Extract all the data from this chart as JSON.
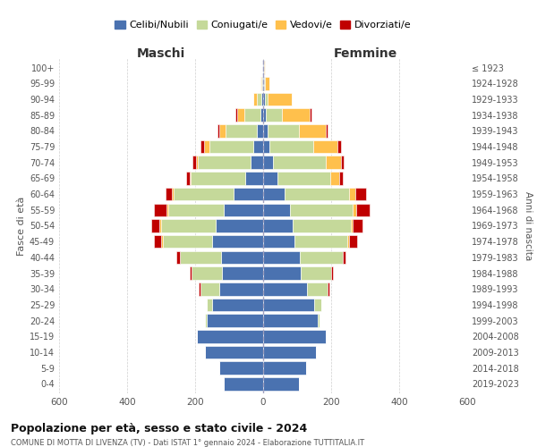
{
  "age_groups": [
    "0-4",
    "5-9",
    "10-14",
    "15-19",
    "20-24",
    "25-29",
    "30-34",
    "35-39",
    "40-44",
    "45-49",
    "50-54",
    "55-59",
    "60-64",
    "65-69",
    "70-74",
    "75-79",
    "80-84",
    "85-89",
    "90-94",
    "95-99",
    "100+"
  ],
  "birth_years": [
    "2019-2023",
    "2014-2018",
    "2009-2013",
    "2004-2008",
    "1999-2003",
    "1994-1998",
    "1989-1993",
    "1984-1988",
    "1979-1983",
    "1974-1978",
    "1969-1973",
    "1964-1968",
    "1959-1963",
    "1954-1958",
    "1949-1953",
    "1944-1948",
    "1939-1943",
    "1934-1938",
    "1929-1933",
    "1924-1928",
    "≤ 1923"
  ],
  "maschi": {
    "celibi": [
      115,
      130,
      170,
      195,
      165,
      150,
      130,
      120,
      125,
      150,
      140,
      115,
      88,
      52,
      38,
      28,
      18,
      8,
      4,
      2,
      2
    ],
    "coniugati": [
      0,
      0,
      0,
      0,
      5,
      15,
      55,
      90,
      120,
      145,
      160,
      165,
      175,
      160,
      155,
      130,
      92,
      48,
      14,
      3,
      1
    ],
    "vedovi": [
      0,
      0,
      0,
      0,
      0,
      0,
      0,
      0,
      0,
      5,
      5,
      5,
      5,
      5,
      5,
      15,
      20,
      20,
      10,
      2,
      0
    ],
    "divorziati": [
      0,
      0,
      0,
      0,
      0,
      0,
      5,
      5,
      10,
      20,
      25,
      35,
      20,
      10,
      10,
      10,
      5,
      5,
      0,
      0,
      0
    ]
  },
  "femmine": {
    "nubili": [
      105,
      125,
      155,
      185,
      160,
      150,
      130,
      110,
      108,
      92,
      88,
      78,
      62,
      43,
      28,
      18,
      13,
      8,
      4,
      2,
      2
    ],
    "coniugate": [
      0,
      0,
      0,
      0,
      5,
      20,
      60,
      90,
      125,
      155,
      170,
      185,
      190,
      155,
      155,
      130,
      92,
      48,
      10,
      2,
      0
    ],
    "vedove": [
      0,
      0,
      0,
      0,
      0,
      0,
      0,
      0,
      0,
      5,
      5,
      10,
      20,
      25,
      45,
      70,
      80,
      80,
      70,
      15,
      2
    ],
    "divorziate": [
      0,
      0,
      0,
      0,
      0,
      0,
      5,
      5,
      10,
      25,
      30,
      40,
      30,
      10,
      10,
      10,
      5,
      5,
      0,
      0,
      0
    ]
  },
  "colors": {
    "celibi": "#4a72b0",
    "coniugati": "#c5d99a",
    "vedovi": "#ffc04c",
    "divorziati": "#c00000"
  },
  "title1": "Popolazione per età, sesso e stato civile - 2024",
  "title2": "COMUNE DI MOTTA DI LIVENZA (TV) - Dati ISTAT 1° gennaio 2024 - Elaborazione TUTTITALIA.IT",
  "xlabel_left": "Maschi",
  "xlabel_right": "Femmine",
  "ylabel_left": "Fasce di età",
  "ylabel_right": "Anni di nascita",
  "xlim": 600,
  "legend_labels": [
    "Celibi/Nubili",
    "Coniugati/e",
    "Vedovi/e",
    "Divorziati/e"
  ],
  "background_color": "#ffffff",
  "grid_color": "#bbbbbb"
}
